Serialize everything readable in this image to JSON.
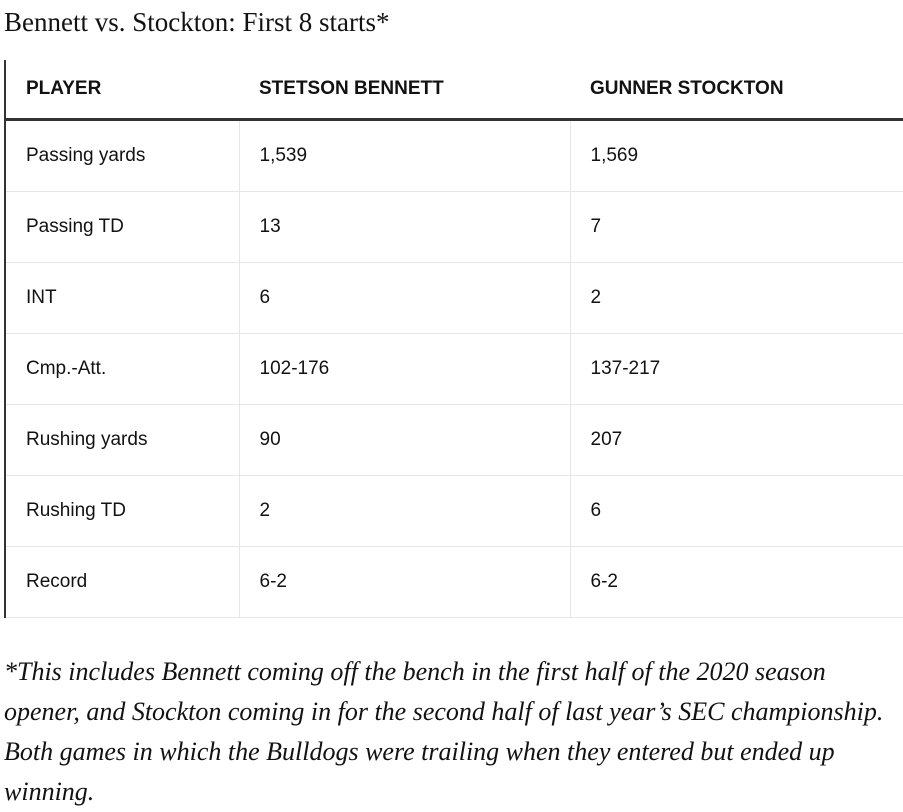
{
  "header": {
    "title": "Bennett vs. Stockton: First 8 starts*"
  },
  "table": {
    "columns": [
      "PLAYER",
      "STETSON BENNETT",
      "GUNNER STOCKTON"
    ],
    "rows": [
      [
        "Passing yards",
        "1,539",
        "1,569"
      ],
      [
        "Passing TD",
        "13",
        "7"
      ],
      [
        "INT",
        "6",
        "2"
      ],
      [
        "Cmp.-Att.",
        "102-176",
        "137-217"
      ],
      [
        "Rushing yards",
        "90",
        "207"
      ],
      [
        "Rushing TD",
        "2",
        "6"
      ],
      [
        "Record",
        "6-2",
        "6-2"
      ]
    ]
  },
  "footnote": "*This includes Bennett coming off the bench in the first half of the 2020 season opener, and Stockton coming in for the second half of last year’s SEC championship. Both games in which the Bulldogs were trailing when they entered but ended up winning."
}
